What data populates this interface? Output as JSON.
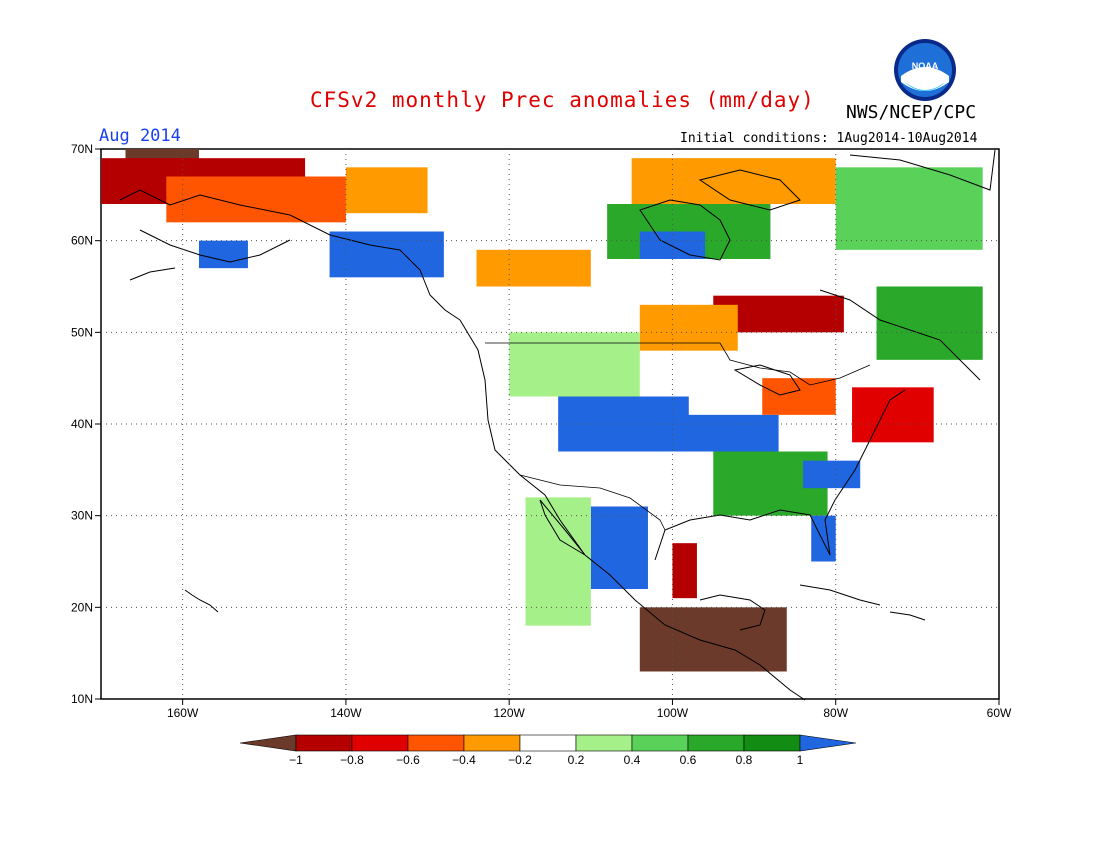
{
  "header": {
    "title": "CFSv2 monthly Prec anomalies (mm/day)",
    "agency": "NWS/NCEP/CPC",
    "logo_text": "NOAA",
    "month": "Aug 2014",
    "initial_conditions": "Initial conditions: 1Aug2014-10Aug2014"
  },
  "map": {
    "lon_labels": [
      "160W",
      "140W",
      "120W",
      "100W",
      "80W",
      "60W"
    ],
    "lat_labels": [
      "70N",
      "60N",
      "50N",
      "40N",
      "30N",
      "20N",
      "10N"
    ],
    "lon_range": [
      -170,
      -60
    ],
    "lat_range": [
      10,
      70
    ]
  },
  "colorbar": {
    "tick_labels": [
      "−1",
      "−0.8",
      "−0.6",
      "−0.4",
      "−0.2",
      "0.2",
      "0.4",
      "0.6",
      "0.8",
      "1"
    ],
    "colors": [
      "#6b3a2a",
      "#b40000",
      "#e00000",
      "#ff5500",
      "#ff9a00",
      "#ffffff",
      "#a6f08a",
      "#5ad25a",
      "#2aa82a",
      "#128c12",
      "#1f66e0"
    ]
  },
  "anomaly_regions": [
    {
      "level": "#6b3a2a",
      "lat": [
        66,
        70
      ],
      "lon": [
        -167,
        -158
      ]
    },
    {
      "level": "#b40000",
      "lat": [
        64,
        69
      ],
      "lon": [
        -170,
        -145
      ]
    },
    {
      "level": "#ff5500",
      "lat": [
        62,
        67
      ],
      "lon": [
        -162,
        -140
      ]
    },
    {
      "level": "#ff9a00",
      "lat": [
        63,
        68
      ],
      "lon": [
        -140,
        -130
      ]
    },
    {
      "level": "#1f66e0",
      "lat": [
        56,
        61
      ],
      "lon": [
        -142,
        -128
      ]
    },
    {
      "level": "#1f66e0",
      "lat": [
        57,
        60
      ],
      "lon": [
        -158,
        -152
      ]
    },
    {
      "level": "#2aa82a",
      "lat": [
        58,
        64
      ],
      "lon": [
        -108,
        -88
      ]
    },
    {
      "level": "#1f66e0",
      "lat": [
        58,
        61
      ],
      "lon": [
        -104,
        -96
      ]
    },
    {
      "level": "#ff9a00",
      "lat": [
        64,
        69
      ],
      "lon": [
        -105,
        -80
      ]
    },
    {
      "level": "#ff9a00",
      "lat": [
        55,
        59
      ],
      "lon": [
        -124,
        -110
      ]
    },
    {
      "level": "#5ad25a",
      "lat": [
        59,
        68
      ],
      "lon": [
        -80,
        -62
      ]
    },
    {
      "level": "#2aa82a",
      "lat": [
        47,
        55
      ],
      "lon": [
        -75,
        -62
      ]
    },
    {
      "level": "#b40000",
      "lat": [
        50,
        54
      ],
      "lon": [
        -95,
        -79
      ]
    },
    {
      "level": "#ff9a00",
      "lat": [
        48,
        53
      ],
      "lon": [
        -104,
        -92
      ]
    },
    {
      "level": "#a6f08a",
      "lat": [
        43,
        50
      ],
      "lon": [
        -120,
        -104
      ]
    },
    {
      "level": "#1f66e0",
      "lat": [
        37,
        43
      ],
      "lon": [
        -114,
        -98
      ]
    },
    {
      "level": "#1f66e0",
      "lat": [
        37,
        41
      ],
      "lon": [
        -100,
        -87
      ]
    },
    {
      "level": "#2aa82a",
      "lat": [
        30,
        37
      ],
      "lon": [
        -95,
        -81
      ]
    },
    {
      "level": "#1f66e0",
      "lat": [
        33,
        36
      ],
      "lon": [
        -84,
        -77
      ]
    },
    {
      "level": "#1f66e0",
      "lat": [
        22,
        31
      ],
      "lon": [
        -110,
        -103
      ]
    },
    {
      "level": "#ff5500",
      "lat": [
        41,
        45
      ],
      "lon": [
        -89,
        -80
      ]
    },
    {
      "level": "#e00000",
      "lat": [
        38,
        44
      ],
      "lon": [
        -78,
        -68
      ]
    },
    {
      "level": "#b40000",
      "lat": [
        21,
        27
      ],
      "lon": [
        -100,
        -97
      ]
    },
    {
      "level": "#6b3a2a",
      "lat": [
        13,
        20
      ],
      "lon": [
        -104,
        -86
      ]
    },
    {
      "level": "#1f66e0",
      "lat": [
        25,
        30
      ],
      "lon": [
        -83,
        -80
      ]
    },
    {
      "level": "#a6f08a",
      "lat": [
        18,
        32
      ],
      "lon": [
        -118,
        -110
      ]
    }
  ]
}
